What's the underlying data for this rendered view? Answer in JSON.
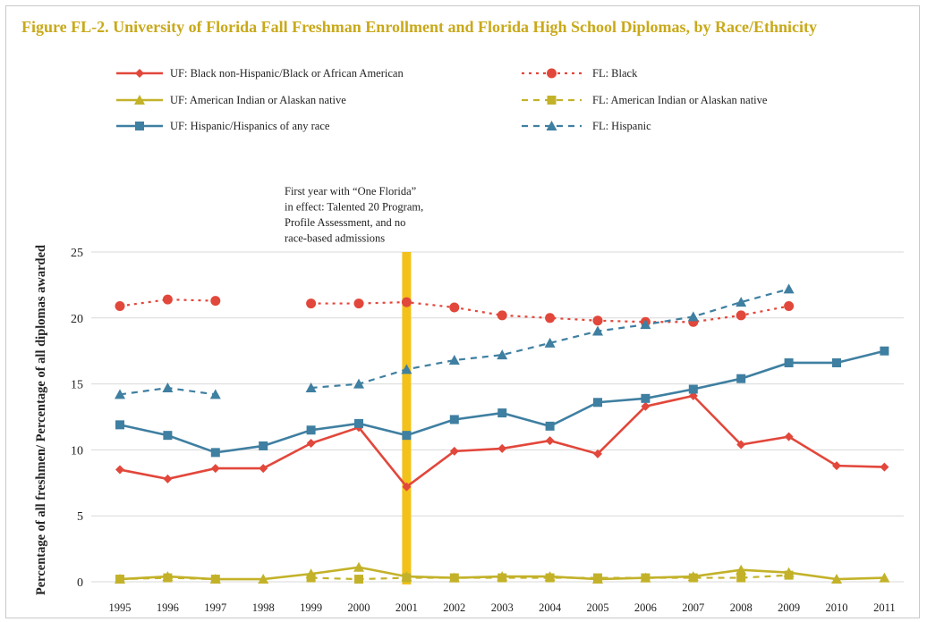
{
  "figure": {
    "title": "Figure FL-2. University of Florida Fall Freshman Enrollment and Florida High School Diplomas, by Race/Ethnicity"
  },
  "colors": {
    "title": "#c9a91a",
    "uf_black": "#e2473b",
    "uf_amind": "#c3b229",
    "uf_hispanic": "#3f7fa1",
    "fl_black": "#e2473b",
    "fl_amind": "#c3b229",
    "fl_hispanic": "#3f7fa1",
    "policy_bar": "#f2c21b",
    "grid": "#d9d9d9"
  },
  "chart_data": {
    "type": "line",
    "title": "Figure FL-2. University of Florida Fall Freshman Enrollment and Florida High School Diplomas, by Race/Ethnicity",
    "xlabel": "",
    "ylabel": "Percentage of all freshmen/ Percentage of all diplomas awarded",
    "ylim": [
      0,
      25
    ],
    "yticks": [
      0,
      5,
      10,
      15,
      20,
      25
    ],
    "categories": [
      "1995",
      "1996",
      "1997",
      "1998",
      "1999",
      "2000",
      "2001",
      "2002",
      "2003",
      "2004",
      "2005",
      "2006",
      "2007",
      "2008",
      "2009",
      "2010",
      "2011"
    ],
    "grid": true,
    "legend_position": "top",
    "series": [
      {
        "name": "UF: Black non-Hispanic/Black or African American",
        "key": "uf_black",
        "style": "solid",
        "marker": "diamond",
        "values": [
          8.5,
          7.8,
          8.6,
          8.6,
          10.5,
          11.7,
          7.2,
          9.9,
          10.1,
          10.7,
          9.7,
          13.3,
          14.1,
          10.4,
          11.0,
          8.8,
          8.7
        ]
      },
      {
        "name": "UF: American Indian or Alaskan native",
        "key": "uf_amind",
        "style": "solid",
        "marker": "triangle",
        "values": [
          0.2,
          0.4,
          0.2,
          0.2,
          0.6,
          1.1,
          0.4,
          0.3,
          0.4,
          0.4,
          0.2,
          0.3,
          0.4,
          0.9,
          0.7,
          0.2,
          0.3
        ]
      },
      {
        "name": "UF: Hispanic/Hispanics of any race",
        "key": "uf_hispanic",
        "style": "solid",
        "marker": "square",
        "values": [
          11.9,
          11.1,
          9.8,
          10.3,
          11.5,
          12.0,
          11.1,
          12.3,
          12.8,
          11.8,
          13.6,
          13.9,
          14.6,
          15.4,
          16.6,
          16.6,
          17.5
        ]
      },
      {
        "name": "FL: Black",
        "key": "fl_black",
        "style": "dotted",
        "marker": "circle",
        "values": [
          20.9,
          21.4,
          21.3,
          null,
          21.1,
          21.1,
          21.2,
          20.8,
          20.2,
          20.0,
          19.8,
          19.7,
          19.7,
          20.2,
          20.9,
          null,
          null
        ]
      },
      {
        "name": "FL: American Indian or Alaskan native",
        "key": "fl_amind",
        "style": "dashed",
        "marker": "square",
        "values": [
          0.2,
          0.3,
          0.2,
          null,
          0.3,
          0.2,
          0.3,
          0.3,
          0.3,
          0.3,
          0.3,
          0.3,
          0.3,
          0.3,
          0.5,
          null,
          null
        ]
      },
      {
        "name": "FL: Hispanic",
        "key": "fl_hispanic",
        "style": "dashed",
        "marker": "triangle",
        "values": [
          14.2,
          14.7,
          14.2,
          null,
          14.7,
          15.0,
          16.1,
          16.8,
          17.2,
          18.1,
          19.0,
          19.5,
          20.1,
          21.2,
          22.2,
          null,
          null
        ]
      }
    ],
    "annotations": [
      {
        "year": "2001",
        "type": "vertical-band",
        "text": [
          "First year with “One Florida”",
          "in effect: Talented 20 Program,",
          "Profile Assessment, and no",
          "race-based admissions"
        ]
      }
    ]
  }
}
